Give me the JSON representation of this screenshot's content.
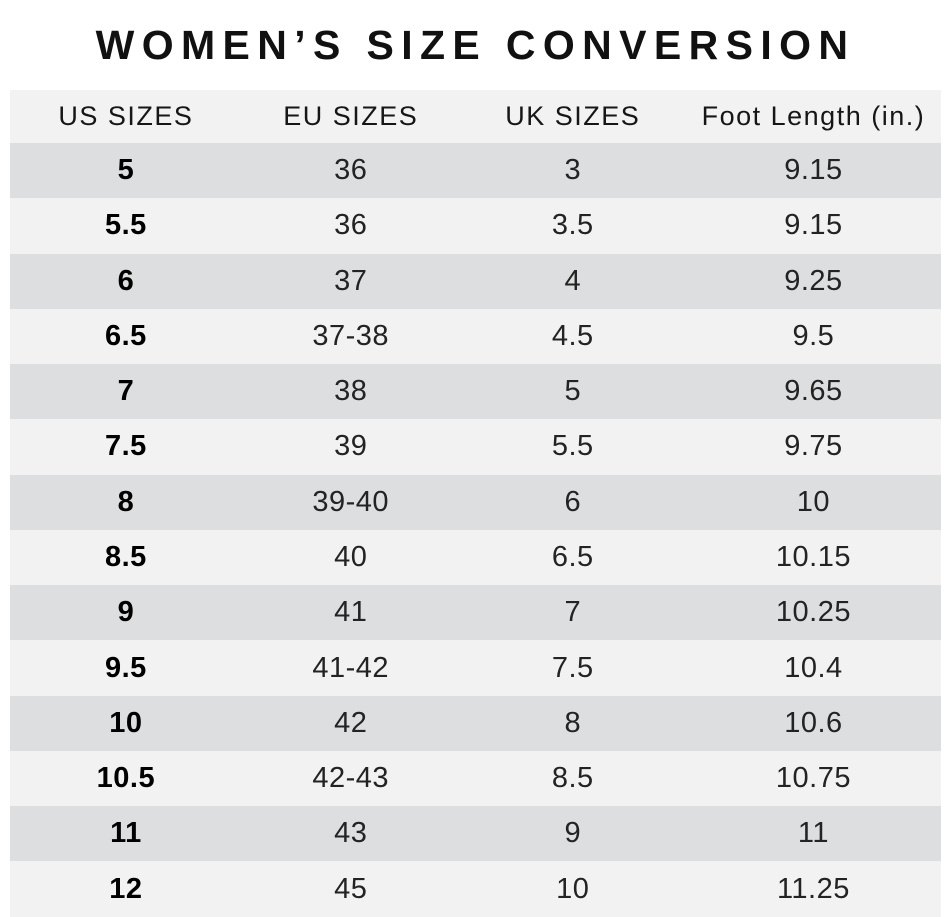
{
  "title": "WOMEN’S SIZE CONVERSION",
  "chart_data": {
    "type": "table",
    "title": "WOMEN’S SIZE CONVERSION",
    "columns": [
      "US SIZES",
      "EU SIZES",
      "UK SIZES",
      "Foot Length (in.)"
    ],
    "rows": [
      [
        "5",
        "36",
        "3",
        "9.15"
      ],
      [
        "5.5",
        "36",
        "3.5",
        "9.15"
      ],
      [
        "6",
        "37",
        "4",
        "9.25"
      ],
      [
        "6.5",
        "37-38",
        "4.5",
        "9.5"
      ],
      [
        "7",
        "38",
        "5",
        "9.65"
      ],
      [
        "7.5",
        "39",
        "5.5",
        "9.75"
      ],
      [
        "8",
        "39-40",
        "6",
        "10"
      ],
      [
        "8.5",
        "40",
        "6.5",
        "10.15"
      ],
      [
        "9",
        "41",
        "7",
        "10.25"
      ],
      [
        "9.5",
        "41-42",
        "7.5",
        "10.4"
      ],
      [
        "10",
        "42",
        "8",
        "10.6"
      ],
      [
        "10.5",
        "42-43",
        "8.5",
        "10.75"
      ],
      [
        "11",
        "43",
        "9",
        "11"
      ],
      [
        "12",
        "45",
        "10",
        "11.25"
      ]
    ]
  },
  "colors": {
    "background": "#ffffff",
    "row_dark": "#dcdee0",
    "row_light": "#f2f2f3",
    "header_bg": "#f2f2f3",
    "text": "#232323",
    "title": "#111111"
  }
}
